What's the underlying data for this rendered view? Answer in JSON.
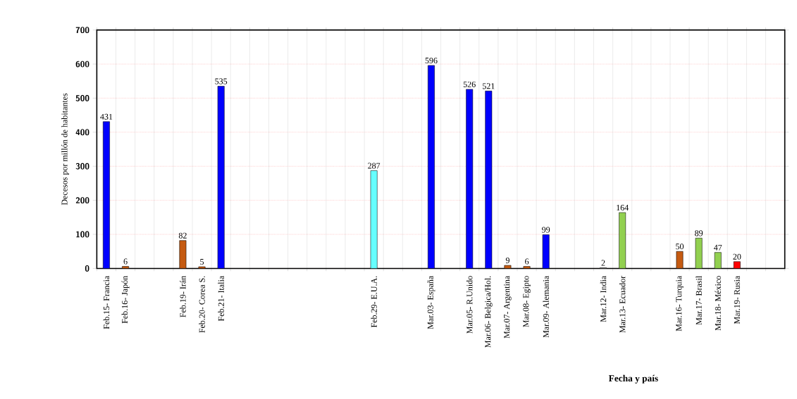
{
  "chart_data": {
    "type": "bar",
    "xlabel": "Fecha y país",
    "ylabel": "Decesos por millón de habitantes",
    "categories": [
      "Feb.15-   Francia",
      "Feb.16-   Japón",
      null,
      null,
      "Feb.19-        Irán",
      "Feb.20-  Corea S.",
      "Feb.21-   Italia",
      null,
      null,
      null,
      null,
      null,
      null,
      null,
      "Feb.29-    E.U.A.",
      null,
      null,
      "Mar.03-    España",
      null,
      "Mar.05-    R.Unido",
      "Mar.06-  Belgica/Hol.",
      "Mar.07- Argentina",
      "Mar.08- Egipto",
      "Mar.09-  Alemania",
      null,
      null,
      "Mar.12- India",
      "Mar.13-   Ecuador",
      null,
      null,
      "Mar.16- Turquia",
      "Mar.17-     Brasil",
      "Mar.18-   México",
      "Mar.19-    Rusia",
      null,
      null
    ],
    "values": [
      431,
      6,
      null,
      null,
      82,
      5,
      535,
      null,
      null,
      null,
      null,
      null,
      null,
      null,
      287,
      null,
      null,
      596,
      null,
      526,
      521,
      9,
      6,
      99,
      null,
      null,
      2,
      164,
      null,
      null,
      50,
      89,
      47,
      20,
      null,
      null
    ],
    "colors": [
      "#0000ff",
      "#c55a11",
      null,
      null,
      "#c55a11",
      "#c55a11",
      "#0000ff",
      null,
      null,
      null,
      null,
      null,
      null,
      null,
      "#66ffff",
      null,
      null,
      "#0000ff",
      null,
      "#0000ff",
      "#0000ff",
      "#c55a11",
      "#c55a11",
      "#0000ff",
      null,
      null,
      "#bfbfbf",
      "#92d050",
      null,
      null,
      "#c55a11",
      "#92d050",
      "#92d050",
      "#ff0000",
      null,
      null
    ],
    "ylim": [
      0,
      700
    ],
    "yticks": [
      0,
      100,
      200,
      300,
      400,
      500,
      600,
      700
    ],
    "grid": true,
    "data_labels": true
  }
}
